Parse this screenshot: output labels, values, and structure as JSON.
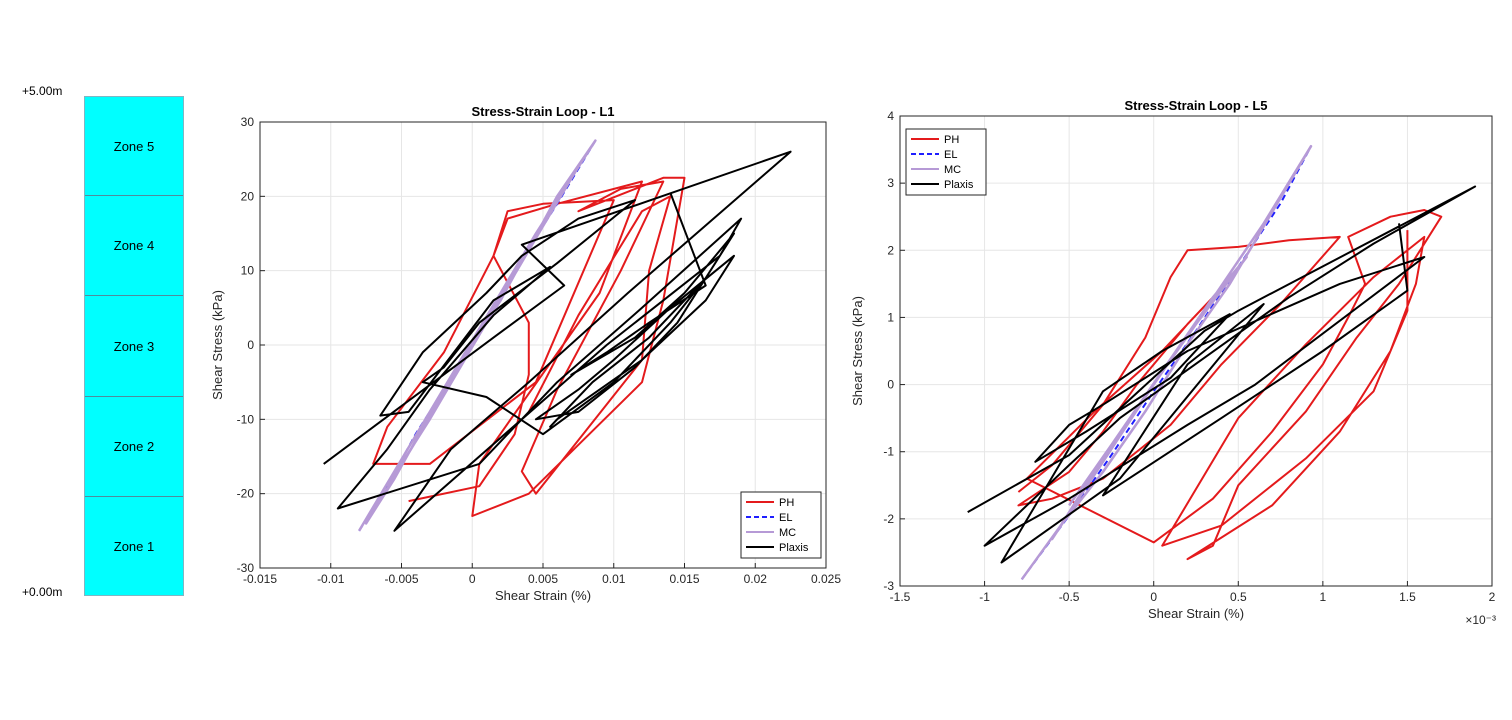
{
  "profile": {
    "top_label": "+5.00m",
    "bottom_label": "+0.00m",
    "zones": [
      "Zone 5",
      "Zone 4",
      "Zone 3",
      "Zone 2",
      "Zone 1"
    ]
  },
  "colors": {
    "PH": "#e41a1c",
    "EL": "#1f1fff",
    "MC": "#b69ad6",
    "Plaxis": "#000000"
  },
  "chart_data": [
    {
      "type": "line",
      "title": "Stress-Strain Loop - L1",
      "xlabel": "Shear Strain (%)",
      "ylabel": "Shear Stress (kPa)",
      "xlim": [
        -0.015,
        0.025
      ],
      "ylim": [
        -30,
        30
      ],
      "xticks": [
        -0.015,
        -0.01,
        -0.005,
        0,
        0.005,
        0.01,
        0.015,
        0.02,
        0.025
      ],
      "xtick_labels": [
        "-0.015",
        "-0.01",
        "-0.005",
        "0",
        "0.005",
        "0.01",
        "0.015",
        "0.02",
        "0.025"
      ],
      "yticks": [
        -30,
        -20,
        -10,
        0,
        10,
        20,
        30
      ],
      "ytick_labels": [
        "-30",
        "-20",
        "-10",
        "0",
        "10",
        "20",
        "30"
      ],
      "exponent_label": "",
      "grid": true,
      "legend_position": "bottom-right",
      "series": [
        {
          "name": "PH",
          "points": [
            [
              -0.0045,
              -21
            ],
            [
              0.0005,
              -19
            ],
            [
              0.003,
              -12
            ],
            [
              0.004,
              -4
            ],
            [
              0.004,
              3
            ],
            [
              0.0015,
              12
            ],
            [
              0.0025,
              18
            ],
            [
              0.005,
              19
            ],
            [
              0.01,
              19.5
            ],
            [
              0.0045,
              -5
            ],
            [
              -0.003,
              -16
            ],
            [
              -0.007,
              -16
            ],
            [
              -0.006,
              -11
            ],
            [
              -0.002,
              -1
            ],
            [
              0.0015,
              12
            ],
            [
              0.0025,
              17
            ],
            [
              0.006,
              19
            ],
            [
              0.012,
              22
            ],
            [
              0.009,
              7
            ],
            [
              0.0005,
              -16
            ],
            [
              0,
              -23
            ],
            [
              0.004,
              -20
            ],
            [
              0.012,
              -5
            ],
            [
              0.0135,
              6
            ],
            [
              0.015,
              22.5
            ],
            [
              0.0135,
              22.5
            ],
            [
              0.0075,
              18
            ],
            [
              0.0105,
              21
            ],
            [
              0.0135,
              22
            ],
            [
              0.0105,
              10
            ],
            [
              0.006,
              -6
            ],
            [
              0.0035,
              -17
            ],
            [
              0.0045,
              -20
            ],
            [
              0.012,
              -2
            ],
            [
              0.0125,
              10
            ],
            [
              0.014,
              20
            ],
            [
              0.012,
              18
            ],
            [
              0.0075,
              4
            ],
            [
              0.004,
              -9
            ]
          ]
        },
        {
          "name": "EL",
          "points": [
            [
              -0.008,
              -25
            ],
            [
              -0.006,
              -19
            ],
            [
              -0.004,
              -12
            ],
            [
              -0.002,
              -6
            ],
            [
              0,
              0
            ],
            [
              0.002,
              6.5
            ],
            [
              0.004,
              13
            ],
            [
              0.006,
              19
            ],
            [
              0.0087,
              27.5
            ]
          ]
        },
        {
          "name": "MC",
          "points": [
            [
              -0.008,
              -25
            ],
            [
              -0.0055,
              -17
            ],
            [
              -0.003,
              -9
            ],
            [
              -0.0005,
              -1
            ],
            [
              0.002,
              7
            ],
            [
              0.0045,
              15
            ],
            [
              0.0087,
              27.5
            ],
            [
              0.006,
              20
            ],
            [
              0.002,
              6
            ],
            [
              -0.002,
              -6
            ],
            [
              -0.0055,
              -18
            ],
            [
              -0.0075,
              -24
            ],
            [
              -0.004,
              -13
            ],
            [
              0,
              0
            ],
            [
              0.004,
              13
            ],
            [
              0.0075,
              24
            ],
            [
              0.005,
              16
            ],
            [
              0.001,
              3
            ],
            [
              -0.003,
              -10
            ],
            [
              -0.006,
              -19
            ]
          ]
        },
        {
          "name": "Plaxis",
          "points": [
            [
              -0.0105,
              -16
            ],
            [
              0.0015,
              1
            ],
            [
              0.0065,
              8
            ],
            [
              0.0035,
              13.5
            ],
            [
              0.0225,
              26
            ],
            [
              0.011,
              7
            ],
            [
              0.004,
              -5
            ],
            [
              -0.0015,
              -14
            ],
            [
              -0.0055,
              -25
            ],
            [
              0.0095,
              0
            ],
            [
              0.0175,
              12
            ],
            [
              0.019,
              17
            ],
            [
              0.012,
              5
            ],
            [
              0.006,
              -5
            ],
            [
              0.0005,
              -16
            ],
            [
              -0.0095,
              -22
            ],
            [
              -0.006,
              -14
            ],
            [
              -0.003,
              -6
            ],
            [
              0.0015,
              4
            ],
            [
              0.0055,
              10.5
            ],
            [
              0.0015,
              6
            ],
            [
              -0.0045,
              -9
            ],
            [
              -0.0065,
              -9.5
            ],
            [
              -0.0035,
              -1
            ],
            [
              0.001,
              7
            ],
            [
              0.0035,
              12
            ],
            [
              0.0075,
              17
            ],
            [
              0.0115,
              19.5
            ],
            [
              0.006,
              11
            ],
            [
              0.0005,
              3
            ],
            [
              -0.002,
              -3
            ],
            [
              -0.0035,
              -5
            ],
            [
              0.001,
              -7
            ],
            [
              0.005,
              -12
            ],
            [
              0.01,
              -5
            ],
            [
              0.014,
              3
            ],
            [
              0.0165,
              9
            ],
            [
              0.0125,
              1
            ],
            [
              0.0085,
              -5
            ],
            [
              0.0055,
              -11
            ],
            [
              0.006,
              -10
            ],
            [
              0.012,
              -2
            ],
            [
              0.0165,
              6
            ],
            [
              0.0185,
              12
            ],
            [
              0.014,
              5
            ],
            [
              0.01,
              -2
            ],
            [
              0.0075,
              -6
            ],
            [
              0.0045,
              -10
            ],
            [
              0.0075,
              -9
            ],
            [
              0.0115,
              -3
            ],
            [
              0.0145,
              3
            ],
            [
              0.0185,
              15
            ],
            [
              0.015,
              7
            ],
            [
              0.0115,
              1
            ],
            [
              0.007,
              -4
            ],
            [
              0.0095,
              -1
            ],
            [
              0.0125,
              3
            ],
            [
              0.0165,
              8
            ],
            [
              0.014,
              20.5
            ]
          ]
        }
      ]
    },
    {
      "type": "line",
      "title": "Stress-Strain Loop - L5",
      "xlabel": "Shear Strain (%)",
      "ylabel": "Shear Stress (kPa)",
      "xlim": [
        -1.5,
        2
      ],
      "ylim": [
        -3,
        4
      ],
      "xticks": [
        -1.5,
        -1,
        -0.5,
        0,
        0.5,
        1,
        1.5,
        2
      ],
      "xtick_labels": [
        "-1.5",
        "-1",
        "-0.5",
        "0",
        "0.5",
        "1",
        "1.5",
        "2"
      ],
      "yticks": [
        -3,
        -2,
        -1,
        0,
        1,
        2,
        3,
        4
      ],
      "ytick_labels": [
        "-3",
        "-2",
        "-1",
        "0",
        "1",
        "2",
        "3",
        "4"
      ],
      "exponent_label": "×10⁻³",
      "grid": true,
      "legend_position": "top-left",
      "series": [
        {
          "name": "PH",
          "points": [
            [
              -0.8,
              -1.6
            ],
            [
              -0.6,
              -1.2
            ],
            [
              -0.3,
              -0.3
            ],
            [
              -0.05,
              0.7
            ],
            [
              0.1,
              1.6
            ],
            [
              0.2,
              2
            ],
            [
              0.5,
              2.05
            ],
            [
              0.8,
              2.15
            ],
            [
              1.1,
              2.2
            ],
            [
              0.75,
              1.2
            ],
            [
              0.4,
              0.3
            ],
            [
              0.1,
              -0.6
            ],
            [
              -0.3,
              -1.4
            ],
            [
              -0.6,
              -1.7
            ],
            [
              -0.8,
              -1.8
            ],
            [
              -0.5,
              -1.3
            ],
            [
              -0.3,
              -0.7
            ],
            [
              -0.1,
              0
            ],
            [
              0.2,
              0.9
            ],
            [
              0.35,
              1.3
            ],
            [
              0.05,
              0.5
            ],
            [
              -0.35,
              -0.4
            ],
            [
              -0.75,
              -1.4
            ],
            [
              0,
              -2.35
            ],
            [
              0.35,
              -1.7
            ],
            [
              0.7,
              -0.7
            ],
            [
              1,
              0.3
            ],
            [
              1.15,
              1
            ],
            [
              1.25,
              1.5
            ],
            [
              1.15,
              2.2
            ],
            [
              1.4,
              2.5
            ],
            [
              1.6,
              2.6
            ],
            [
              1.7,
              2.5
            ],
            [
              1.45,
              1.5
            ],
            [
              1.2,
              0.7
            ],
            [
              0.9,
              -0.4
            ],
            [
              0.5,
              -1.5
            ],
            [
              0.35,
              -2.4
            ],
            [
              0.2,
              -2.6
            ],
            [
              0.7,
              -1.8
            ],
            [
              1.1,
              -0.7
            ],
            [
              1.4,
              0.5
            ],
            [
              1.55,
              1.5
            ],
            [
              1.6,
              2.2
            ],
            [
              1.3,
              1.6
            ],
            [
              0.9,
              0.6
            ],
            [
              0.5,
              -0.5
            ],
            [
              0.05,
              -2.4
            ],
            [
              0.4,
              -2.1
            ],
            [
              0.9,
              -1.1
            ],
            [
              1.3,
              -0.1
            ],
            [
              1.5,
              1.1
            ],
            [
              1.5,
              2.3
            ]
          ]
        },
        {
          "name": "EL",
          "points": [
            [
              -0.78,
              -2.9
            ],
            [
              -0.5,
              -1.95
            ],
            [
              -0.25,
              -1.05
            ],
            [
              0,
              -0.1
            ],
            [
              0.25,
              0.8
            ],
            [
              0.5,
              1.75
            ],
            [
              0.75,
              2.7
            ],
            [
              0.93,
              3.55
            ]
          ]
        },
        {
          "name": "MC",
          "points": [
            [
              -0.78,
              -2.9
            ],
            [
              -0.55,
              -2.1
            ],
            [
              -0.3,
              -1.3
            ],
            [
              -0.05,
              -0.4
            ],
            [
              0.2,
              0.6
            ],
            [
              0.45,
              1.5
            ],
            [
              0.93,
              3.55
            ],
            [
              0.65,
              2.4
            ],
            [
              0.3,
              1.1
            ],
            [
              0,
              0
            ],
            [
              -0.3,
              -1.15
            ],
            [
              -0.6,
              -2.3
            ],
            [
              -0.4,
              -1.5
            ],
            [
              -0.1,
              -0.35
            ],
            [
              0.25,
              0.9
            ],
            [
              0.55,
              1.9
            ],
            [
              0.35,
              1.3
            ],
            [
              0.05,
              0.2
            ],
            [
              -0.25,
              -0.9
            ],
            [
              -0.5,
              -1.8
            ]
          ]
        },
        {
          "name": "Plaxis",
          "points": [
            [
              -1.1,
              -1.9
            ],
            [
              -0.5,
              -1.05
            ],
            [
              0.3,
              0.8
            ],
            [
              0.5,
              1.1
            ],
            [
              1.9,
              2.95
            ],
            [
              1.3,
              2.1
            ],
            [
              0.8,
              1.3
            ],
            [
              0.3,
              0.4
            ],
            [
              -0.2,
              -0.5
            ],
            [
              -0.5,
              -1.2
            ],
            [
              -1,
              -2.4
            ],
            [
              -0.5,
              -1.7
            ],
            [
              0.2,
              -0.6
            ],
            [
              0.6,
              0
            ],
            [
              1.6,
              1.9
            ],
            [
              1.1,
              1.5
            ],
            [
              0.2,
              0.5
            ],
            [
              -0.3,
              -0.3
            ],
            [
              -0.5,
              -0.6
            ],
            [
              -0.7,
              -1.15
            ],
            [
              -0.4,
              -0.7
            ],
            [
              0.1,
              0.1
            ],
            [
              0.45,
              1.05
            ],
            [
              0.05,
              0.5
            ],
            [
              -0.3,
              -0.1
            ],
            [
              -0.9,
              -2.65
            ],
            [
              -0.2,
              -1.4
            ],
            [
              0.65,
              1.2
            ],
            [
              0.2,
              0.3
            ],
            [
              -0.3,
              -1.65
            ],
            [
              0.4,
              -0.5
            ],
            [
              1,
              0.5
            ],
            [
              1.5,
              1.4
            ],
            [
              1.45,
              2.4
            ]
          ]
        }
      ]
    }
  ]
}
